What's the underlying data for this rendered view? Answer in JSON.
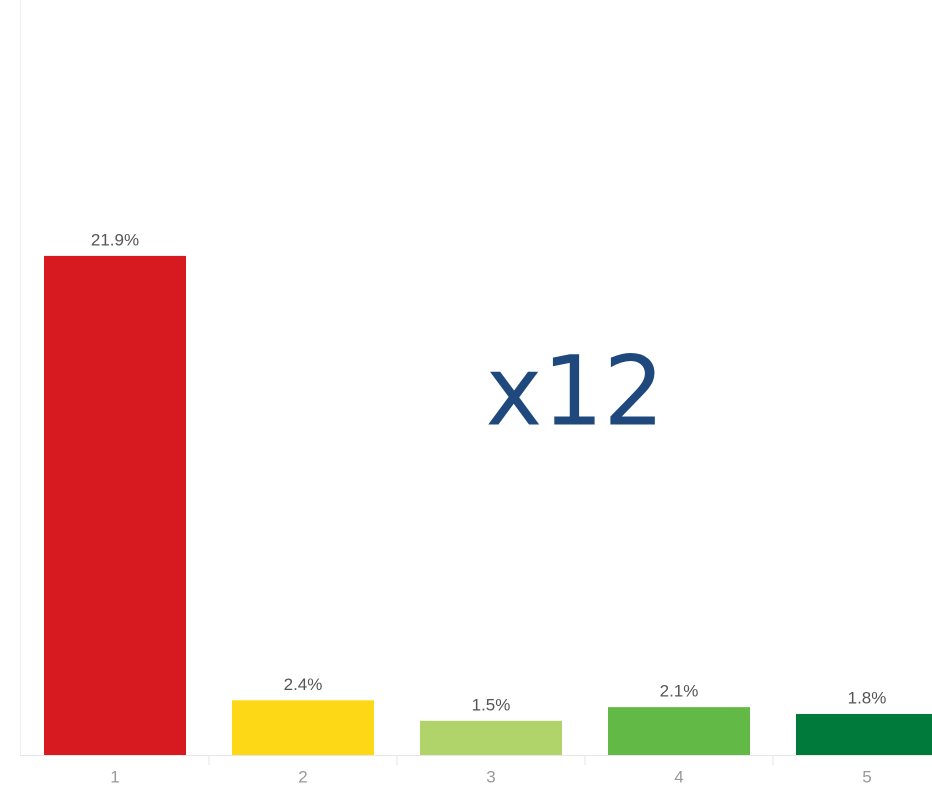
{
  "chart_data": {
    "type": "bar",
    "categories": [
      "1",
      "2",
      "3",
      "4",
      "5"
    ],
    "values": [
      21.9,
      2.4,
      1.5,
      2.1,
      1.8
    ],
    "value_labels": [
      "21.9%",
      "2.4%",
      "1.5%",
      "2.1%",
      "1.8%"
    ],
    "colors": [
      "#d71920",
      "#fdd816",
      "#b0d46a",
      "#62b946",
      "#007a3a"
    ],
    "annotation": "x12"
  }
}
